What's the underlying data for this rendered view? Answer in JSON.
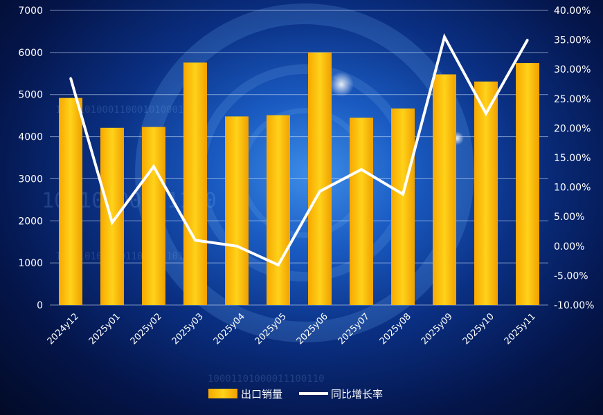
{
  "chart_data": {
    "type": "bar+line",
    "categories": [
      "2024y12",
      "2025y01",
      "2025y02",
      "2025y03",
      "2025y04",
      "2025y05",
      "2025y06",
      "2025y07",
      "2025y08",
      "2025y09",
      "2025y10",
      "2025y11"
    ],
    "series": [
      {
        "name": "出口销量",
        "type": "bar",
        "axis": "left",
        "values": [
          4920,
          4210,
          4230,
          5760,
          4480,
          4510,
          6000,
          4450,
          4670,
          5480,
          5310,
          5750
        ]
      },
      {
        "name": "同比增长率",
        "type": "line",
        "axis": "right",
        "values": [
          28.5,
          4.0,
          13.5,
          1.0,
          0.0,
          -3.2,
          9.3,
          13.0,
          8.8,
          35.5,
          22.5,
          35.0
        ]
      }
    ],
    "y_left": {
      "min": 0,
      "max": 7000,
      "ticks": [
        "0",
        "1000",
        "2000",
        "3000",
        "4000",
        "5000",
        "6000",
        "7000"
      ]
    },
    "y_right": {
      "min": -10,
      "max": 40,
      "ticks": [
        "-10.00%",
        "-5.00%",
        "0.00%",
        "5.00%",
        "10.00%",
        "15.00%",
        "20.00%",
        "25.00%",
        "30.00%",
        "35.00%",
        "40.00%"
      ]
    },
    "grid": true,
    "legend_position": "bottom",
    "colors": {
      "bar": "#f5b800",
      "line": "#ffffff"
    }
  }
}
